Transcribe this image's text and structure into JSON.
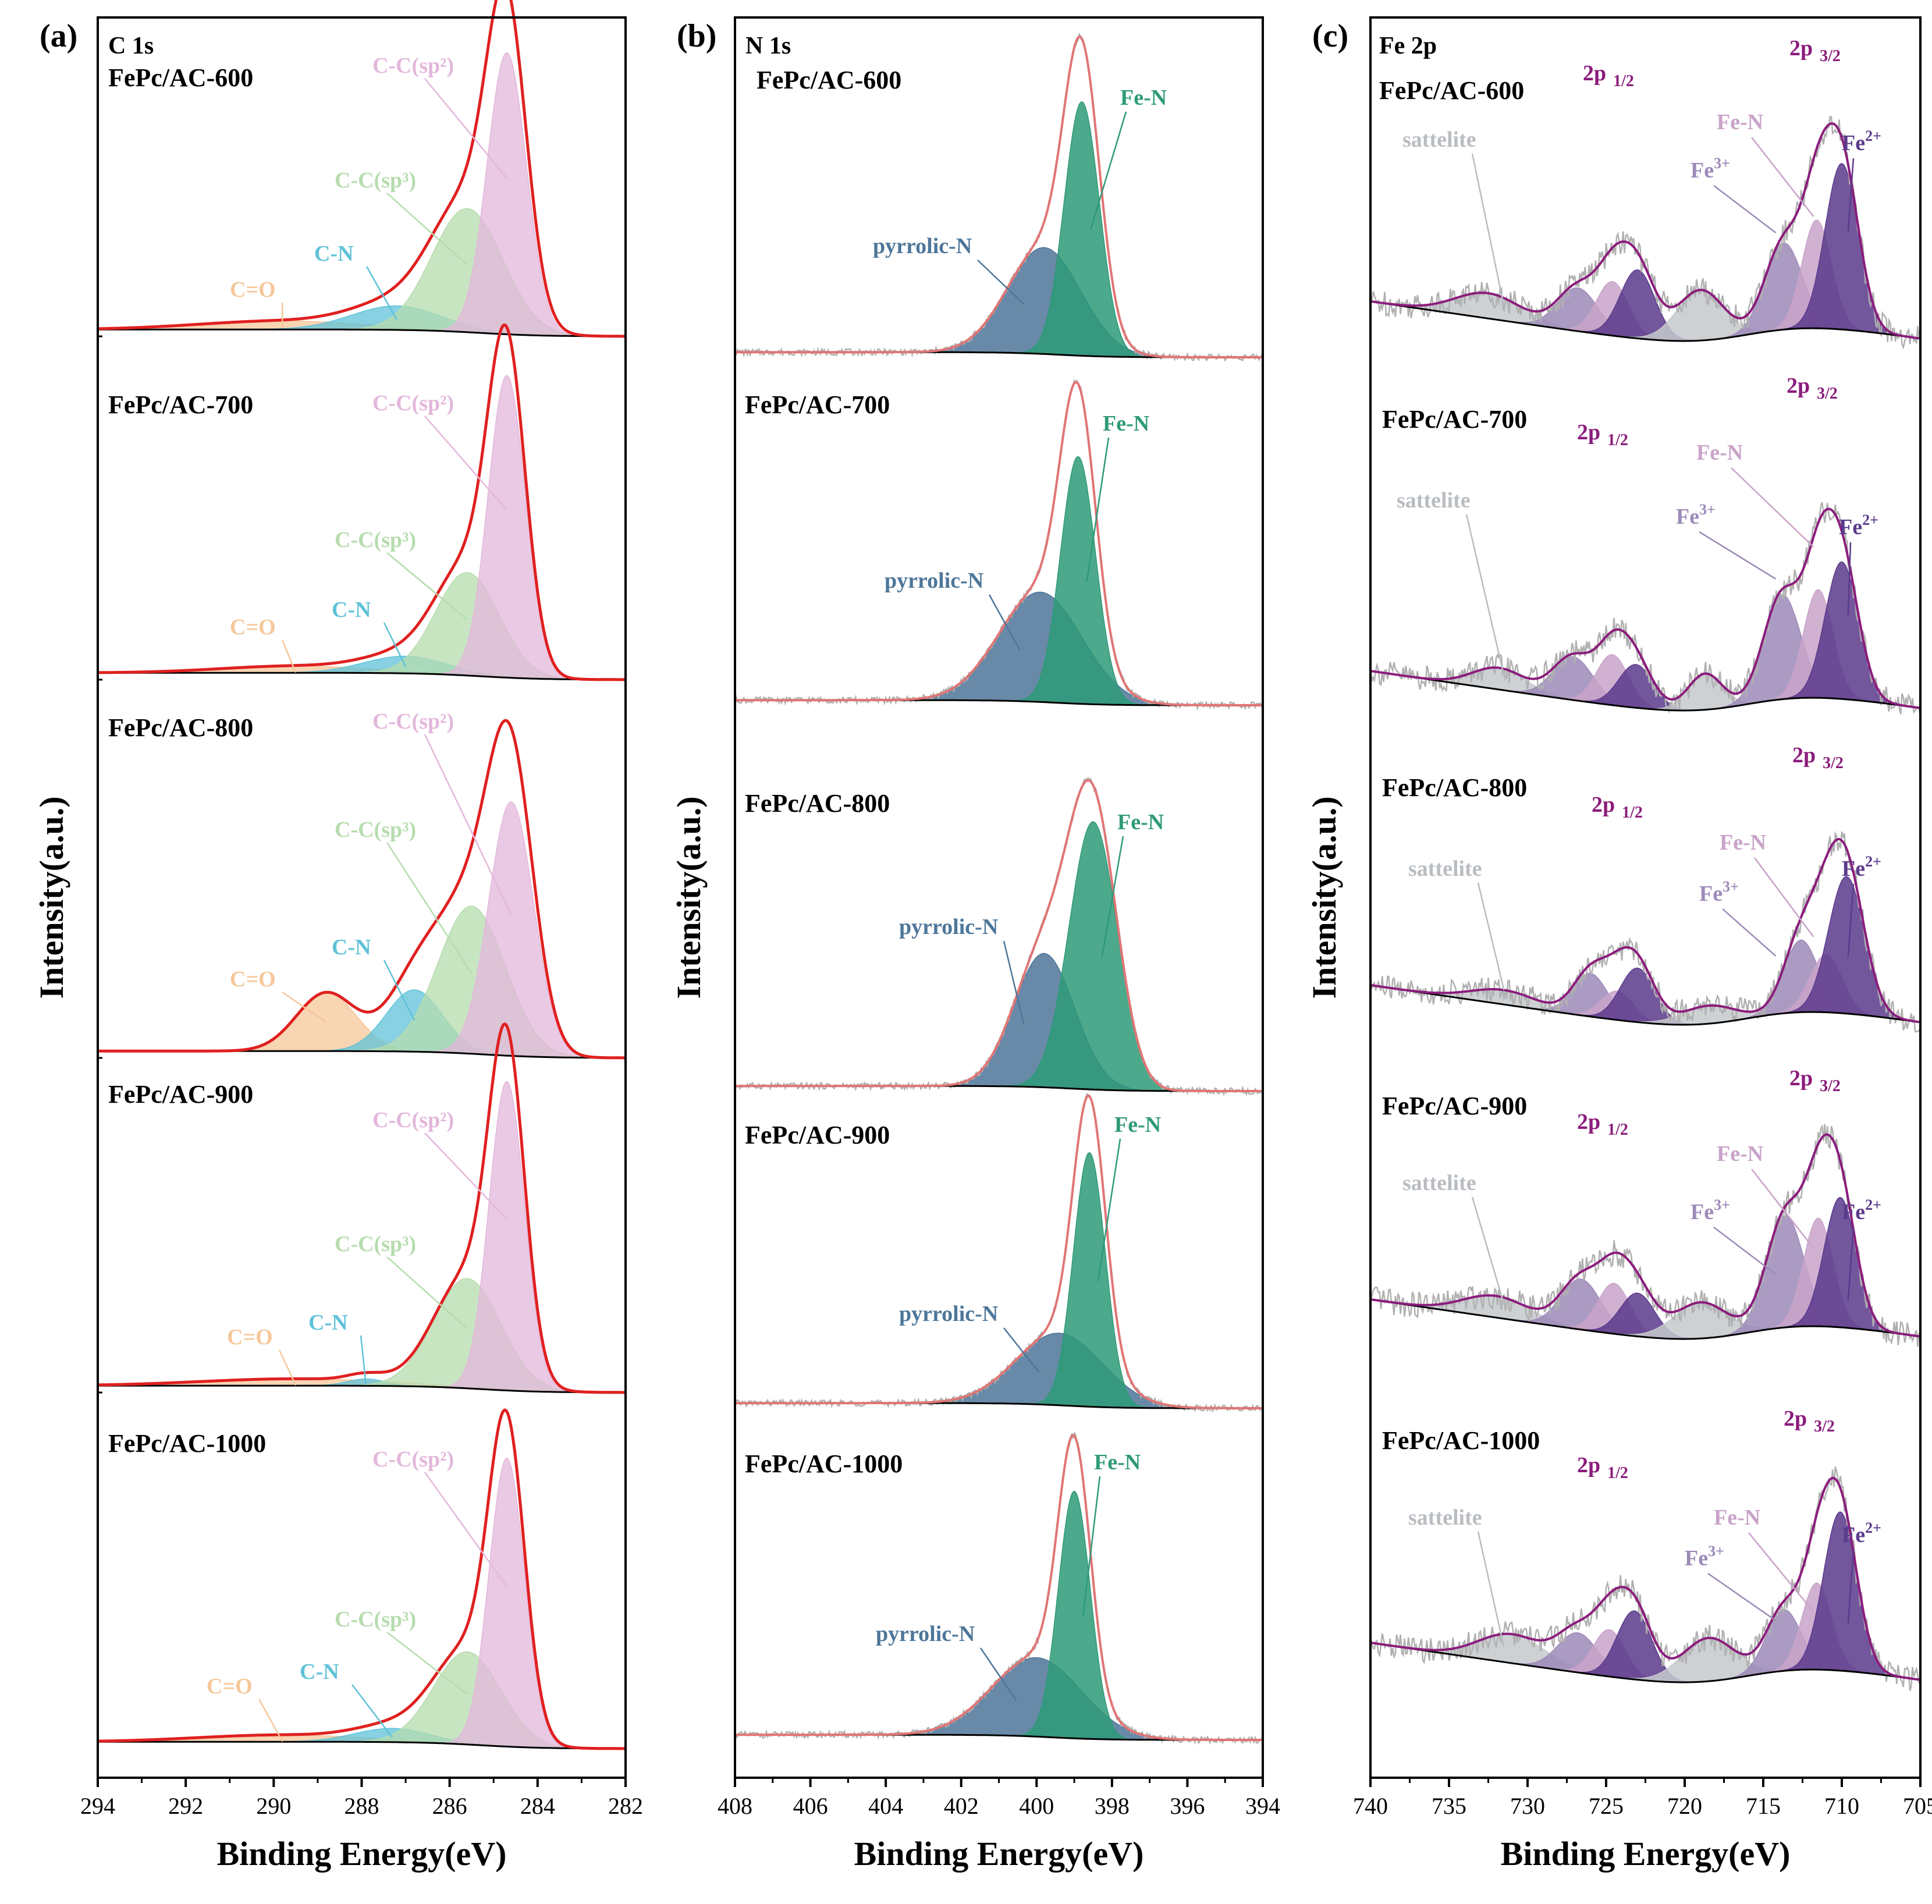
{
  "figure": {
    "ylabel": "Intensity(a.u.)",
    "xlabel": "Binding Energy(eV)"
  },
  "chart_data": [
    {
      "type": "line",
      "panel": "(a)",
      "title": "C 1s",
      "xlabel": "Binding Energy(eV)",
      "ylabel": "Intensity(a.u.)",
      "xlim": [
        294,
        282
      ],
      "xticks": [
        "294",
        "292",
        "290",
        "288",
        "286",
        "284",
        "282"
      ],
      "xtick_values": [
        294,
        292,
        290,
        288,
        286,
        284,
        282
      ],
      "samples": [
        {
          "name": "FePc/AC-600",
          "peaks": [
            {
              "label": "C-C(sp²)",
              "center": 284.7,
              "fwhm": 1.05,
              "height": 0.82,
              "color": "#e3b7db"
            },
            {
              "label": "C-C(sp³)",
              "center": 285.6,
              "fwhm": 1.9,
              "height": 0.36,
              "color": "#b6dcae"
            },
            {
              "label": "C-N",
              "center": 287.2,
              "fwhm": 2.4,
              "height": 0.07,
              "color": "#5fc2d8"
            },
            {
              "label": "C=O",
              "center": 289.8,
              "fwhm": 4.5,
              "height": 0.025,
              "color": "#f6c79a"
            }
          ]
        },
        {
          "name": "FePc/AC-700",
          "peaks": [
            {
              "label": "C-C(sp²)",
              "center": 284.7,
              "fwhm": 1.0,
              "height": 0.88,
              "color": "#e3b7db"
            },
            {
              "label": "C-C(sp³)",
              "center": 285.6,
              "fwhm": 1.7,
              "height": 0.3,
              "color": "#b6dcae"
            },
            {
              "label": "C-N",
              "center": 287.0,
              "fwhm": 2.2,
              "height": 0.05,
              "color": "#5fc2d8"
            },
            {
              "label": "C=O",
              "center": 289.5,
              "fwhm": 4.0,
              "height": 0.02,
              "color": "#f6c79a"
            }
          ]
        },
        {
          "name": "FePc/AC-800",
          "peaks": [
            {
              "label": "C-C(sp²)",
              "center": 284.6,
              "fwhm": 1.2,
              "height": 0.74,
              "color": "#e3b7db"
            },
            {
              "label": "C-C(sp³)",
              "center": 285.5,
              "fwhm": 1.8,
              "height": 0.43,
              "color": "#b6dcae"
            },
            {
              "label": "C-N",
              "center": 286.8,
              "fwhm": 1.5,
              "height": 0.18,
              "color": "#5fc2d8"
            },
            {
              "label": "C=O",
              "center": 288.8,
              "fwhm": 1.6,
              "height": 0.17,
              "color": "#f6c79a"
            }
          ]
        },
        {
          "name": "FePc/AC-900",
          "peaks": [
            {
              "label": "C-C(sp²)",
              "center": 284.7,
              "fwhm": 0.95,
              "height": 0.9,
              "color": "#e3b7db"
            },
            {
              "label": "C-C(sp³)",
              "center": 285.6,
              "fwhm": 1.8,
              "height": 0.32,
              "color": "#b6dcae"
            },
            {
              "label": "C-N",
              "center": 287.9,
              "fwhm": 1.0,
              "height": 0.02,
              "color": "#5fc2d8"
            },
            {
              "label": "C=O",
              "center": 289.5,
              "fwhm": 5.0,
              "height": 0.02,
              "color": "#f6c79a"
            }
          ]
        },
        {
          "name": "FePc/AC-1000",
          "peaks": [
            {
              "label": "C-C(sp²)",
              "center": 284.7,
              "fwhm": 0.95,
              "height": 0.84,
              "color": "#e3b7db"
            },
            {
              "label": "C-C(sp³)",
              "center": 285.6,
              "fwhm": 1.8,
              "height": 0.27,
              "color": "#b6dcae"
            },
            {
              "label": "C-N",
              "center": 287.3,
              "fwhm": 2.0,
              "height": 0.04,
              "color": "#5fc2d8"
            },
            {
              "label": "C=O",
              "center": 289.8,
              "fwhm": 4.5,
              "height": 0.02,
              "color": "#f6c79a"
            }
          ]
        }
      ]
    },
    {
      "type": "line",
      "panel": "(b)",
      "title": "N 1s",
      "xlabel": "Binding Energy(eV)",
      "ylabel": "Intensity(a.u.)",
      "xlim": [
        408,
        394
      ],
      "xticks": [
        "408",
        "406",
        "404",
        "402",
        "400",
        "398",
        "396",
        "394"
      ],
      "xtick_values": [
        408,
        406,
        404,
        402,
        400,
        398,
        396,
        394
      ],
      "samples": [
        {
          "name": "FePc/AC-600",
          "peaks": [
            {
              "label": "Fe-N",
              "center": 398.8,
              "fwhm": 1.1,
              "height": 0.74,
              "color": "#2e9a78"
            },
            {
              "label": "pyrrolic-N",
              "center": 399.8,
              "fwhm": 2.3,
              "height": 0.31,
              "color": "#4d7699"
            }
          ]
        },
        {
          "name": "FePc/AC-700",
          "peaks": [
            {
              "label": "Fe-N",
              "center": 398.9,
              "fwhm": 1.1,
              "height": 0.72,
              "color": "#2e9a78"
            },
            {
              "label": "pyrrolic-N",
              "center": 399.9,
              "fwhm": 2.6,
              "height": 0.32,
              "color": "#4d7699"
            }
          ]
        },
        {
          "name": "FePc/AC-800",
          "peaks": [
            {
              "label": "Fe-N",
              "center": 398.5,
              "fwhm": 1.5,
              "height": 0.78,
              "color": "#2e9a78"
            },
            {
              "label": "pyrrolic-N",
              "center": 399.8,
              "fwhm": 1.9,
              "height": 0.39,
              "color": "#4d7699"
            }
          ]
        },
        {
          "name": "FePc/AC-900",
          "peaks": [
            {
              "label": "Fe-N",
              "center": 398.6,
              "fwhm": 1.0,
              "height": 0.74,
              "color": "#2e9a78"
            },
            {
              "label": "pyrrolic-N",
              "center": 399.4,
              "fwhm": 2.7,
              "height": 0.21,
              "color": "#4d7699"
            }
          ]
        },
        {
          "name": "FePc/AC-1000",
          "peaks": [
            {
              "label": "Fe-N",
              "center": 399.0,
              "fwhm": 1.0,
              "height": 0.72,
              "color": "#2e9a78"
            },
            {
              "label": "pyrrolic-N",
              "center": 400.0,
              "fwhm": 2.8,
              "height": 0.23,
              "color": "#4d7699"
            }
          ]
        }
      ]
    },
    {
      "type": "line",
      "panel": "(c)",
      "title": "Fe 2p",
      "xlabel": "Binding Energy(eV)",
      "ylabel": "Intensity(a.u.)",
      "xlim": [
        740,
        705
      ],
      "xticks": [
        "740",
        "735",
        "730",
        "725",
        "720",
        "715",
        "710",
        "705"
      ],
      "xtick_values": [
        740,
        735,
        730,
        725,
        720,
        715,
        710,
        705
      ],
      "annotations": [
        "2p",
        "1/2",
        "3/2",
        "sattelite",
        "Fe-N",
        "Fe",
        "3+",
        "2+"
      ],
      "samples": [
        {
          "name": "FePc/AC-600",
          "peaks": [
            {
              "label": "Fe2+",
              "center": 710.0,
              "fwhm": 2.5,
              "height": 0.46,
              "color": "#5b3a8c"
            },
            {
              "label": "Fe-N",
              "center": 711.6,
              "fwhm": 2.2,
              "height": 0.3,
              "color": "#c9a3c9"
            },
            {
              "label": "Fe3+",
              "center": 713.7,
              "fwhm": 2.8,
              "height": 0.24,
              "color": "#9c8ab8"
            },
            {
              "label": "sat",
              "center": 719.0,
              "fwhm": 3.5,
              "height": 0.14,
              "color": "#c5c9cc"
            },
            {
              "label": "Fe2+ (2p1/2)",
              "center": 723.0,
              "fwhm": 2.6,
              "height": 0.19,
              "color": "#5b3a8c"
            },
            {
              "label": "Fe-N (2p1/2)",
              "center": 724.6,
              "fwhm": 2.4,
              "height": 0.15,
              "color": "#c9a3c9"
            },
            {
              "label": "Fe3+ (2p1/2)",
              "center": 726.8,
              "fwhm": 3.0,
              "height": 0.12,
              "color": "#9c8ab8"
            },
            {
              "label": "sattelite",
              "center": 732.5,
              "fwhm": 5.0,
              "height": 0.07,
              "color": "#c5c9cc"
            }
          ]
        },
        {
          "name": "FePc/AC-700",
          "peaks": [
            {
              "label": "Fe2+",
              "center": 710.0,
              "fwhm": 2.5,
              "height": 0.38,
              "color": "#5b3a8c"
            },
            {
              "label": "Fe-N",
              "center": 711.5,
              "fwhm": 2.2,
              "height": 0.3,
              "color": "#c9a3c9"
            },
            {
              "label": "Fe3+",
              "center": 713.8,
              "fwhm": 2.8,
              "height": 0.29,
              "color": "#9c8ab8"
            },
            {
              "label": "sat",
              "center": 718.7,
              "fwhm": 2.6,
              "height": 0.1,
              "color": "#c5c9cc"
            },
            {
              "label": "Fe2+ (2p1/2)",
              "center": 723.1,
              "fwhm": 2.6,
              "height": 0.12,
              "color": "#5b3a8c"
            },
            {
              "label": "Fe-N (2p1/2)",
              "center": 724.6,
              "fwhm": 2.4,
              "height": 0.14,
              "color": "#c9a3c9"
            },
            {
              "label": "Fe3+ (2p1/2)",
              "center": 727.1,
              "fwhm": 3.0,
              "height": 0.12,
              "color": "#9c8ab8"
            },
            {
              "label": "sattelite",
              "center": 731.8,
              "fwhm": 4.0,
              "height": 0.06,
              "color": "#c5c9cc"
            }
          ]
        },
        {
          "name": "FePc/AC-800",
          "peaks": [
            {
              "label": "Fe2+",
              "center": 709.7,
              "fwhm": 2.7,
              "height": 0.38,
              "color": "#5b3a8c"
            },
            {
              "label": "Fe-N",
              "center": 711.0,
              "fwhm": 2.4,
              "height": 0.16,
              "color": "#c9a3c9"
            },
            {
              "label": "Fe3+",
              "center": 712.6,
              "fwhm": 2.6,
              "height": 0.2,
              "color": "#9c8ab8"
            },
            {
              "label": "sat",
              "center": 718.5,
              "fwhm": 4.0,
              "height": 0.05,
              "color": "#c5c9cc"
            },
            {
              "label": "Fe2+ (2p1/2)",
              "center": 723.0,
              "fwhm": 2.6,
              "height": 0.15,
              "color": "#5b3a8c"
            },
            {
              "label": "Fe-N (2p1/2)",
              "center": 724.3,
              "fwhm": 2.4,
              "height": 0.08,
              "color": "#c9a3c9"
            },
            {
              "label": "Fe3+ (2p1/2)",
              "center": 726.0,
              "fwhm": 2.6,
              "height": 0.12,
              "color": "#9c8ab8"
            },
            {
              "label": "sattelite",
              "center": 731.5,
              "fwhm": 5.0,
              "height": 0.04,
              "color": "#c5c9cc"
            }
          ]
        },
        {
          "name": "FePc/AC-900",
          "peaks": [
            {
              "label": "Fe2+",
              "center": 710.1,
              "fwhm": 2.4,
              "height": 0.36,
              "color": "#5b3a8c"
            },
            {
              "label": "Fe-N",
              "center": 711.5,
              "fwhm": 2.2,
              "height": 0.3,
              "color": "#c9a3c9"
            },
            {
              "label": "Fe3+",
              "center": 713.6,
              "fwhm": 2.8,
              "height": 0.31,
              "color": "#9c8ab8"
            },
            {
              "label": "sat",
              "center": 719.0,
              "fwhm": 4.0,
              "height": 0.1,
              "color": "#c5c9cc"
            },
            {
              "label": "Fe2+ (2p1/2)",
              "center": 723.0,
              "fwhm": 2.6,
              "height": 0.12,
              "color": "#5b3a8c"
            },
            {
              "label": "Fe-N (2p1/2)",
              "center": 724.5,
              "fwhm": 2.4,
              "height": 0.14,
              "color": "#c9a3c9"
            },
            {
              "label": "Fe3+ (2p1/2)",
              "center": 726.6,
              "fwhm": 3.0,
              "height": 0.14,
              "color": "#9c8ab8"
            },
            {
              "label": "sattelite",
              "center": 732.0,
              "fwhm": 5.0,
              "height": 0.06,
              "color": "#c5c9cc"
            }
          ]
        },
        {
          "name": "FePc/AC-1000",
          "peaks": [
            {
              "label": "Fe2+",
              "center": 710.1,
              "fwhm": 2.5,
              "height": 0.44,
              "color": "#5b3a8c"
            },
            {
              "label": "Fe-N",
              "center": 711.6,
              "fwhm": 2.2,
              "height": 0.24,
              "color": "#c9a3c9"
            },
            {
              "label": "Fe3+",
              "center": 713.7,
              "fwhm": 2.6,
              "height": 0.17,
              "color": "#9c8ab8"
            },
            {
              "label": "sat",
              "center": 718.5,
              "fwhm": 4.0,
              "height": 0.12,
              "color": "#c5c9cc"
            },
            {
              "label": "Fe2+ (2p1/2)",
              "center": 723.2,
              "fwhm": 2.6,
              "height": 0.19,
              "color": "#5b3a8c"
            },
            {
              "label": "Fe-N (2p1/2)",
              "center": 724.8,
              "fwhm": 2.4,
              "height": 0.13,
              "color": "#c9a3c9"
            },
            {
              "label": "Fe3+ (2p1/2)",
              "center": 726.8,
              "fwhm": 3.0,
              "height": 0.11,
              "color": "#9c8ab8"
            },
            {
              "label": "sattelite",
              "center": 731.0,
              "fwhm": 5.0,
              "height": 0.08,
              "color": "#c5c9cc"
            }
          ]
        }
      ]
    }
  ],
  "style": {
    "envelope_a": "#e02020",
    "envelope_b": "#e07575",
    "envelope_c": "#8b1c7c",
    "raw_data": "#b0b0b0",
    "background_line": "#000000"
  }
}
